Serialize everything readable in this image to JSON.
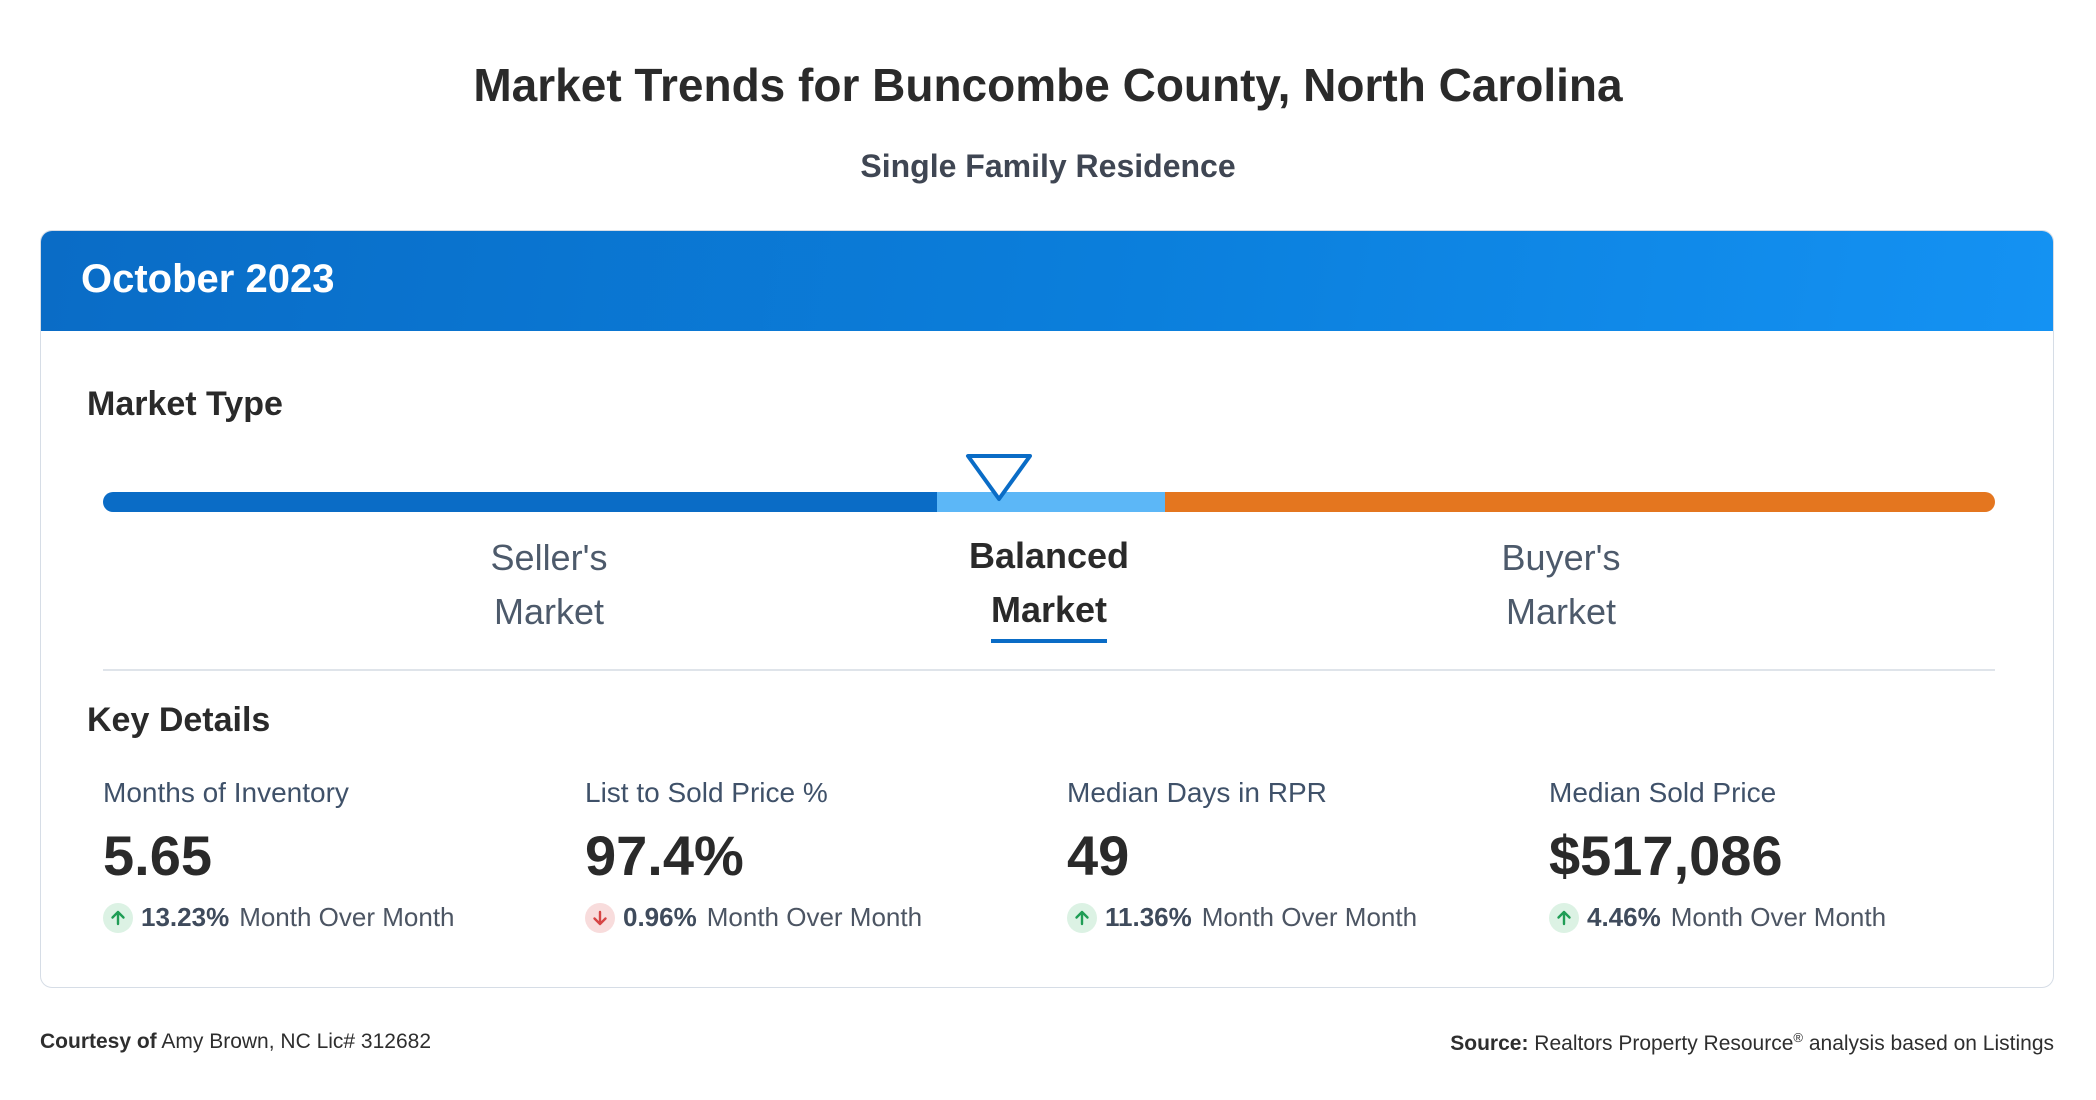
{
  "header": {
    "title": "Market Trends for Buncombe County, North Carolina",
    "subtitle": "Single Family Residence"
  },
  "card": {
    "period": "October 2023",
    "market_type": {
      "title": "Market Type",
      "selected": "Balanced Market",
      "labels": [
        {
          "line1": "Seller's",
          "line2": "Market"
        },
        {
          "line1": "Balanced",
          "line2": "Market"
        },
        {
          "line1": "Buyer's",
          "line2": "Market"
        }
      ],
      "colors": {
        "seller": "#0a6cc6",
        "balanced": "#5cb7f7",
        "buyer": "#e4761f"
      }
    },
    "key_details": {
      "title": "Key Details",
      "metrics": [
        {
          "label": "Months of Inventory",
          "value": "5.65",
          "direction": "up",
          "change": "13.23%",
          "period": "Month Over Month"
        },
        {
          "label": "List to Sold Price %",
          "value": "97.4%",
          "direction": "down",
          "change": "0.96%",
          "period": "Month Over Month"
        },
        {
          "label": "Median Days in RPR",
          "value": "49",
          "direction": "up",
          "change": "11.36%",
          "period": "Month Over Month"
        },
        {
          "label": "Median Sold Price",
          "value": "$517,086",
          "direction": "up",
          "change": "4.46%",
          "period": "Month Over Month"
        }
      ]
    }
  },
  "footer": {
    "courtesy_label": "Courtesy of",
    "courtesy_value": "Amy Brown, NC Lic# 312682",
    "source_label": "Source:",
    "source_value": "Realtors Property Resource",
    "source_mark": "®",
    "source_suffix": "analysis based on Listings"
  },
  "colors": {
    "accent": "#0a6cc6",
    "up": "#1f9d55",
    "down": "#d64545"
  },
  "icons": {
    "up": "arrow-up-icon",
    "down": "arrow-down-icon",
    "marker": "triangle-marker-icon"
  }
}
